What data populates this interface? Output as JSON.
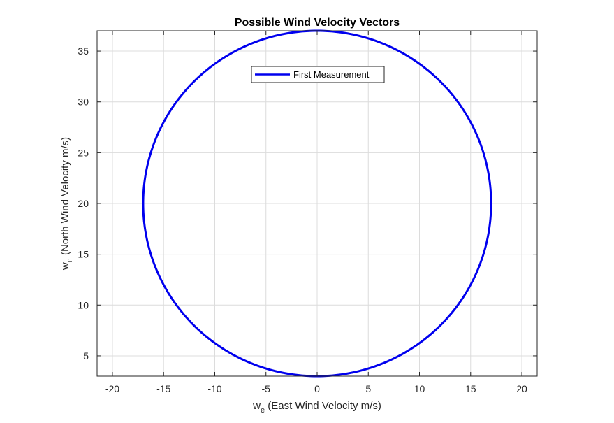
{
  "chart_data": {
    "type": "line",
    "title": "Possible Wind Velocity Vectors",
    "xlabel": {
      "main": "w",
      "sub": "e",
      "rest": " (East Wind Velocity m/s)"
    },
    "ylabel": {
      "main": "w",
      "sub": "n",
      "rest": " (North Wind Velocity m/s)"
    },
    "xlim": [
      -21.5,
      21.5
    ],
    "ylim": [
      3,
      37
    ],
    "xticks": [
      -20,
      -15,
      -10,
      -5,
      0,
      5,
      10,
      15,
      20
    ],
    "yticks": [
      5,
      10,
      15,
      20,
      25,
      30,
      35
    ],
    "grid": true,
    "legend_location": "top-center",
    "series": [
      {
        "name": "First Measurement",
        "color": "#0000ee",
        "shape": "circle",
        "center": [
          0,
          20
        ],
        "radius": 17
      }
    ]
  }
}
